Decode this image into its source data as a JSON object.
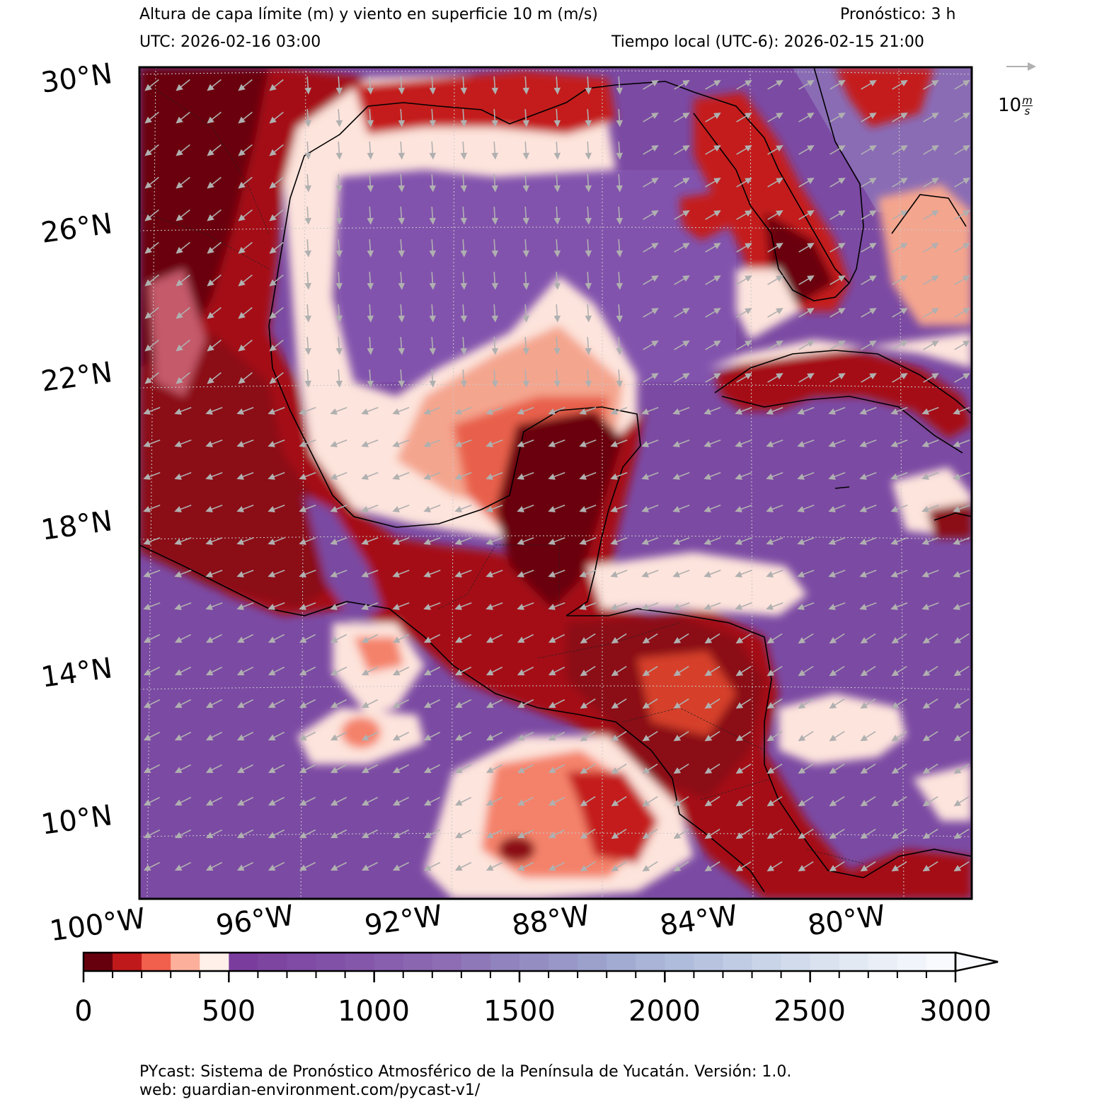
{
  "header": {
    "title": "Altura de capa límite (m) y viento en superficie 10 m (m/s)",
    "forecast": "Pronóstico: 3 h",
    "utc": "UTC:  2026-02-16 03:00",
    "local_time": "Tiempo local (UTC-6): 2026-02-15 21:00"
  },
  "map": {
    "lat_labels": [
      "30°N",
      "26°N",
      "22°N",
      "18°N",
      "14°N",
      "10°N"
    ],
    "lon_labels": [
      "100°W",
      "96°W",
      "92°W",
      "88°W",
      "84°W",
      "80°W"
    ],
    "colors": {
      "ocean_mid": "#7b4aa3",
      "ocean_light": "#8c61b3",
      "land_dark": "#6b0010",
      "land_red": "#c41e1e",
      "salmon": "#f4826a",
      "pale": "#fde4dc"
    }
  },
  "wind_reference": {
    "label_main": "10",
    "label_unit_top": "m",
    "label_unit_bottom": "s"
  },
  "colorbar": {
    "tick_labels": [
      "0",
      "500",
      "1000",
      "1500",
      "2000",
      "2500",
      "3000"
    ],
    "range": [
      0,
      3000
    ],
    "bin_size": 100,
    "extend": "max",
    "colors": [
      "#67000d",
      "#c0191b",
      "#f0604d",
      "#fcb09b",
      "#fff0e9",
      "#7a3d9d",
      "#7d45a0",
      "#7f4ba4",
      "#8151a8",
      "#8457aa",
      "#875fae",
      "#8a66b0",
      "#8e6db4",
      "#8f78b8",
      "#9183bd",
      "#948dc2",
      "#9897c7",
      "#9ca1cc",
      "#a2abd1",
      "#a9b4d6",
      "#b0bcdb",
      "#b8c4df",
      "#c0cce4",
      "#c9d4e8",
      "#d1dbec",
      "#dae2f0",
      "#e2e9f3",
      "#eaeff7",
      "#f1f4fa",
      "#f8fafd"
    ]
  },
  "footer": {
    "line1": "PYcast: Sistema de Pronóstico Atmosférico de la Península de Yucatán. Versión: 1.0.",
    "line2": "web: guardian-environment.com/pycast-v1/"
  }
}
